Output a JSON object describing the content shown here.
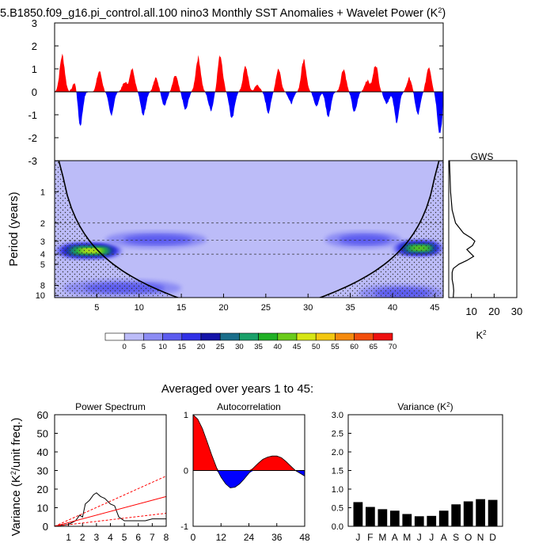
{
  "title": "5.B1850.f09_g16.pi_control.all.100 nino3 Monthly SST Anomalies + Wavelet Power (K",
  "title_sup": "2",
  "title_end": ")",
  "colors": {
    "positive": "#ff0000",
    "negative": "#0000ff",
    "background_power": "#bcbcf8"
  },
  "chart_data": [
    {
      "id": "anomaly",
      "type": "area",
      "title": "Monthly SST Anomalies",
      "ylim": [
        -3,
        3
      ],
      "yticks": [
        -3,
        -2,
        -1,
        0,
        1,
        2,
        3
      ],
      "xlim": [
        0,
        46
      ],
      "event_peaks": [
        {
          "year": 0.9,
          "value": 1.6
        },
        {
          "year": 2.5,
          "value": 0.6
        },
        {
          "year": 3.0,
          "value": -1.6
        },
        {
          "year": 5.3,
          "value": 0.9
        },
        {
          "year": 6.7,
          "value": -1.0
        },
        {
          "year": 8.3,
          "value": 0.4
        },
        {
          "year": 9.2,
          "value": 1.0
        },
        {
          "year": 10.5,
          "value": -1.0
        },
        {
          "year": 12.0,
          "value": 0.6
        },
        {
          "year": 13.0,
          "value": -0.6
        },
        {
          "year": 14.3,
          "value": 0.7
        },
        {
          "year": 15.5,
          "value": -0.8
        },
        {
          "year": 17.0,
          "value": 1.5
        },
        {
          "year": 18.5,
          "value": -0.8
        },
        {
          "year": 19.6,
          "value": 1.6
        },
        {
          "year": 21.0,
          "value": -1.2
        },
        {
          "year": 22.6,
          "value": 1.1
        },
        {
          "year": 24.0,
          "value": 0.3
        },
        {
          "year": 25.3,
          "value": -0.9
        },
        {
          "year": 26.5,
          "value": 1.0
        },
        {
          "year": 28.0,
          "value": -0.5
        },
        {
          "year": 29.5,
          "value": 1.4
        },
        {
          "year": 31.0,
          "value": -0.6
        },
        {
          "year": 32.4,
          "value": -1.1
        },
        {
          "year": 34.2,
          "value": 1.0
        },
        {
          "year": 35.5,
          "value": -0.9
        },
        {
          "year": 37.0,
          "value": 0.5
        },
        {
          "year": 38.0,
          "value": 1.2
        },
        {
          "year": 39.3,
          "value": -0.5
        },
        {
          "year": 40.5,
          "value": -1.3
        },
        {
          "year": 42.0,
          "value": 0.6
        },
        {
          "year": 43.0,
          "value": -1.0
        },
        {
          "year": 44.3,
          "value": 1.1
        },
        {
          "year": 45.6,
          "value": -1.8
        }
      ]
    },
    {
      "id": "wavelet",
      "type": "heatmap",
      "ylabel": "Period (years)",
      "xticks": [
        5,
        10,
        15,
        20,
        25,
        30,
        35,
        40,
        45
      ],
      "yticks": [
        "1",
        "2",
        "3",
        "4",
        "5",
        "8",
        "10"
      ],
      "xlim": [
        0,
        46
      ],
      "period_range": [
        0.5,
        10.5
      ],
      "levels": [
        "0",
        "5",
        "10",
        "15",
        "20",
        "25",
        "30",
        "35",
        "40",
        "45",
        "50",
        "55",
        "60",
        "65",
        "70"
      ],
      "level_colors": [
        "#ffffff",
        "#bcbcf8",
        "#8c8cf4",
        "#5c5cef",
        "#3030e6",
        "#1414a8",
        "#1a6e8a",
        "#19a069",
        "#20b025",
        "#6acb1a",
        "#d6e614",
        "#f3c710",
        "#f58a0d",
        "#f24e0c",
        "#ee1010"
      ],
      "dashed_periods": [
        2,
        2.94,
        4.0
      ],
      "features": [
        {
          "years": [
            0,
            8
          ],
          "period": 3.7,
          "max_power": 45
        },
        {
          "years": [
            6,
            18
          ],
          "period": 2.9,
          "max_power": 10
        },
        {
          "years": [
            1,
            15
          ],
          "period": 8.5,
          "max_power": 10
        },
        {
          "years": [
            32,
            41
          ],
          "period": 2.9,
          "max_power": 12
        },
        {
          "years": [
            40,
            46
          ],
          "period": 3.5,
          "max_power": 40
        },
        {
          "years": [
            36,
            46
          ],
          "period": 9.5,
          "max_power": 8
        }
      ]
    },
    {
      "id": "gws",
      "type": "line",
      "title": "GWS",
      "xlabel": "K",
      "xlabel_sup": "2",
      "xticks": [
        10,
        20,
        30
      ],
      "xlim": [
        0,
        30
      ],
      "period": [
        0.5,
        1.0,
        1.5,
        2.0,
        2.5,
        2.8,
        3.0,
        3.3,
        3.6,
        3.9,
        4.2,
        4.6,
        5.0,
        5.5,
        6.0,
        7.0,
        8.0,
        9.0,
        10.5
      ],
      "power": [
        0.3,
        0.8,
        1.5,
        3.0,
        6.5,
        10.0,
        11.5,
        10.5,
        8.0,
        9.5,
        11.0,
        8.0,
        4.5,
        2.0,
        1.5,
        1.5,
        2.0,
        2.2,
        2.0
      ]
    },
    {
      "id": "power_spectrum",
      "type": "line",
      "title": "Power Spectrum",
      "ylabel": "Variance (K",
      "ylabel_sup": "2",
      "ylabel_end": "/unit freq.)",
      "xlim": [
        0,
        8
      ],
      "ylim": [
        0,
        60
      ],
      "xticks": [
        1,
        2,
        3,
        4,
        5,
        6,
        7,
        8
      ],
      "yticks": [
        0,
        10,
        20,
        30,
        40,
        50,
        60
      ],
      "series": [
        {
          "name": "spectrum",
          "color": "#000000",
          "x": [
            0,
            0.5,
            1.0,
            1.5,
            1.8,
            2.0,
            2.2,
            2.5,
            2.8,
            3.0,
            3.3,
            3.6,
            4.0,
            4.3,
            4.6,
            5.0,
            5.5,
            6.0,
            6.5,
            7.0,
            8.0
          ],
          "y": [
            0,
            0.5,
            1,
            3,
            6,
            5,
            12,
            14,
            17,
            18,
            16,
            15,
            12,
            11,
            5,
            3,
            3,
            3,
            3,
            4,
            4
          ]
        },
        {
          "name": "red noise",
          "color": "#ff0000",
          "x": [
            0,
            8
          ],
          "y": [
            0,
            16
          ]
        },
        {
          "name": "95% significance",
          "color": "#ff0000",
          "dashed": true,
          "x": [
            0,
            8
          ],
          "y": [
            0,
            27
          ]
        },
        {
          "name": "5% significance",
          "color": "#ff0000",
          "dashed": true,
          "x": [
            0,
            8
          ],
          "y": [
            0,
            7
          ]
        }
      ]
    },
    {
      "id": "autocorrelation",
      "type": "area",
      "title": "Autocorrelation",
      "xlim": [
        0,
        48
      ],
      "ylim": [
        -1,
        1
      ],
      "xticks": [
        0,
        12,
        24,
        36,
        48
      ],
      "yticks": [
        "-1",
        "0",
        "1"
      ],
      "lag": [
        0,
        2,
        4,
        6,
        8,
        10,
        11,
        12,
        14,
        16,
        18,
        20,
        22,
        24,
        26,
        28,
        30,
        32,
        34,
        36,
        38,
        40,
        42,
        44,
        46,
        48
      ],
      "acf": [
        1.0,
        0.92,
        0.75,
        0.52,
        0.28,
        0.06,
        -0.04,
        -0.12,
        -0.24,
        -0.31,
        -0.3,
        -0.24,
        -0.15,
        -0.05,
        0.05,
        0.13,
        0.2,
        0.24,
        0.26,
        0.26,
        0.23,
        0.16,
        0.08,
        0.0,
        -0.05,
        -0.1
      ]
    },
    {
      "id": "monthly_variance",
      "type": "bar",
      "title": "Variance (K",
      "title_sup": "2",
      "title_end": ")",
      "categories": [
        "J",
        "F",
        "M",
        "A",
        "M",
        "J",
        "J",
        "A",
        "S",
        "O",
        "N",
        "D"
      ],
      "values": [
        0.65,
        0.52,
        0.46,
        0.42,
        0.33,
        0.27,
        0.28,
        0.42,
        0.59,
        0.67,
        0.73,
        0.71
      ],
      "ylim": [
        0,
        3.0
      ],
      "yticks": [
        "0.0",
        "0.5",
        "1.0",
        "1.5",
        "2.0",
        "2.5",
        "3.0"
      ]
    }
  ],
  "averaged_caption": "Averaged over years 1 to 45:"
}
